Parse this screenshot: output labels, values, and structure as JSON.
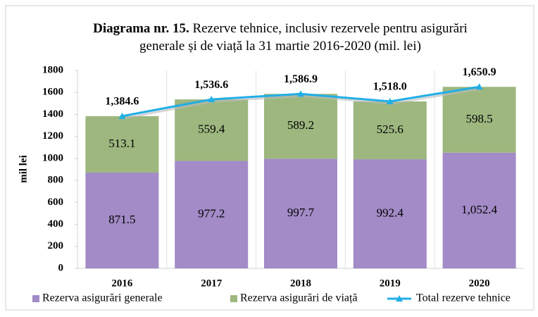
{
  "chart_data": {
    "type": "stacked_bar_line",
    "title_bold": "Diagrama nr. 15.",
    "title": "Rezerve tehnice, inclusiv rezervele pentru asigurări generale și de viață la 31 martie 2016-2020 (mil. lei)",
    "ylabel": "mil lei",
    "categories": [
      "2016",
      "2017",
      "2018",
      "2019",
      "2020"
    ],
    "series": [
      {
        "name": "Rezerva asigurări generale",
        "color": "#a28bc6",
        "kind": "bar",
        "values": [
          871.5,
          977.2,
          997.7,
          992.4,
          1052.4
        ],
        "value_labels": [
          "871.5",
          "977.2",
          "997.7",
          "992.4",
          "1,052.4"
        ]
      },
      {
        "name": "Rezerva asigurări de viață",
        "color": "#9db77f",
        "kind": "bar",
        "values": [
          513.1,
          559.4,
          589.2,
          525.6,
          598.5
        ]
      },
      {
        "name": "Total rezerve tehnice",
        "color": "#21aee6",
        "kind": "line",
        "values": [
          1384.6,
          1536.6,
          1586.9,
          1518.0,
          1650.9
        ],
        "value_labels": [
          "1,384.6",
          "1,536.6",
          "1,586.9",
          "1,518.0",
          "1,650.9"
        ]
      }
    ],
    "ylim": [
      0,
      1800
    ],
    "yticks": [
      0,
      200,
      400,
      600,
      800,
      1000,
      1200,
      1400,
      1600,
      1800
    ],
    "grid": false,
    "legend": "bottom"
  }
}
